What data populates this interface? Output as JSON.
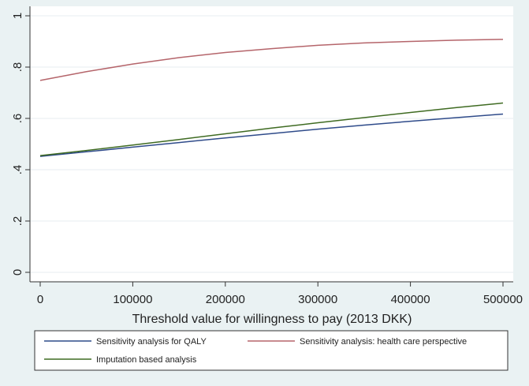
{
  "chart_data": {
    "type": "line",
    "xlabel": "Threshold value for willingness to pay (2013 DKK)",
    "ylabel": "",
    "xlim": [
      0,
      500000
    ],
    "ylim": [
      0,
      1
    ],
    "x_ticks": [
      0,
      100000,
      200000,
      300000,
      400000,
      500000
    ],
    "x_tick_labels": [
      "0",
      "100000",
      "200000",
      "300000",
      "400000",
      "500000"
    ],
    "y_ticks": [
      0,
      0.2,
      0.4,
      0.6,
      0.8,
      1
    ],
    "y_tick_labels": [
      "0",
      ".2",
      ".4",
      ".6",
      ".8",
      "1"
    ],
    "grid": true,
    "legend_position": "bottom",
    "x": [
      0,
      50000,
      100000,
      150000,
      200000,
      250000,
      300000,
      350000,
      400000,
      450000,
      500000
    ],
    "series": [
      {
        "name": "Sensitivity analysis for QALY",
        "color": "#2f4b8a",
        "values": [
          0.452,
          0.47,
          0.488,
          0.506,
          0.524,
          0.541,
          0.558,
          0.574,
          0.589,
          0.603,
          0.617
        ]
      },
      {
        "name": "Sensitivity analysis: health care perspective",
        "color": "#b5656b",
        "values": [
          0.748,
          0.782,
          0.812,
          0.837,
          0.857,
          0.872,
          0.885,
          0.894,
          0.9,
          0.905,
          0.908
        ]
      },
      {
        "name": "Imputation based analysis",
        "color": "#3f6b22",
        "values": [
          0.455,
          0.475,
          0.496,
          0.518,
          0.54,
          0.562,
          0.583,
          0.603,
          0.623,
          0.642,
          0.66
        ]
      }
    ]
  }
}
